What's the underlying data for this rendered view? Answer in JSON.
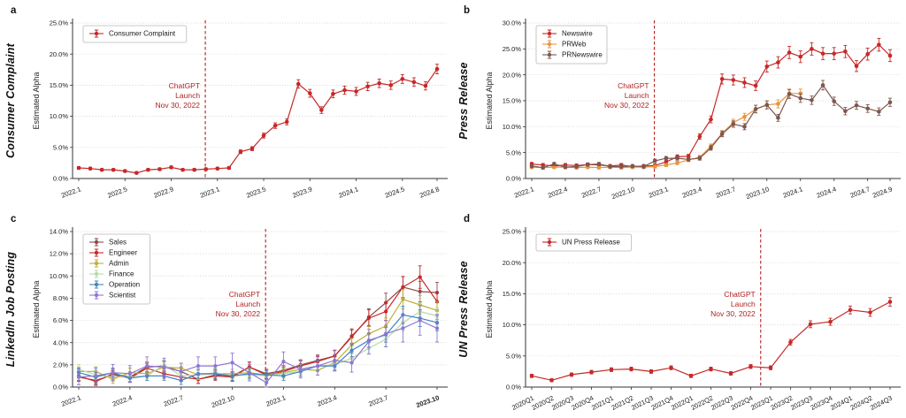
{
  "figure": {
    "panels": [
      {
        "letter": "a",
        "side_label": "Consumer Complaint"
      },
      {
        "letter": "b",
        "side_label": "Press Release"
      },
      {
        "letter": "c",
        "side_label": "LinkedIn Job Posting"
      },
      {
        "letter": "d",
        "side_label": "UN Press Release"
      }
    ]
  },
  "chart_data": [
    {
      "type": "line",
      "panel": "a",
      "title": "Consumer Complaint",
      "ylabel": "Estimated Alpha",
      "ylim": [
        0,
        25
      ],
      "ytick_step": 5,
      "grid": true,
      "legend_position": "upper-left",
      "xtick_angle": -20,
      "marker_r": 2.3,
      "err_base": 0.15,
      "err_rate": 0.035,
      "categories": [
        "2022.1",
        "2022.2",
        "2022.3",
        "2022.4",
        "2022.5",
        "2022.6",
        "2022.7",
        "2022.8",
        "2022.9",
        "2022.10",
        "2022.11",
        "2022.12",
        "2023.1",
        "2023.2",
        "2023.3",
        "2023.4",
        "2023.5",
        "2023.6",
        "2023.7",
        "2023.8",
        "2023.9",
        "2023.10",
        "2023.11",
        "2023.12",
        "2024.1",
        "2024.2",
        "2024.3",
        "2024.4",
        "2024.5",
        "2024.6",
        "2024.7",
        "2024.8"
      ],
      "xtick_labels": [
        "2022.1",
        "2022.5",
        "2022.9",
        "2023.1",
        "2023.5",
        "2023.9",
        "2024.1",
        "2024.5",
        "2024.8"
      ],
      "xtick_indices": [
        0,
        4,
        8,
        12,
        16,
        20,
        24,
        28,
        31
      ],
      "series": [
        {
          "name": "Consumer Complaint",
          "color": "#c62828",
          "values": [
            1.7,
            1.6,
            1.4,
            1.4,
            1.2,
            0.9,
            1.4,
            1.5,
            1.8,
            1.4,
            1.4,
            1.5,
            1.6,
            1.7,
            4.3,
            4.8,
            6.9,
            8.5,
            9.1,
            15.2,
            13.7,
            11.0,
            13.6,
            14.2,
            14.0,
            14.8,
            15.3,
            15.0,
            16.0,
            15.5,
            14.9,
            17.6
          ]
        }
      ],
      "vline": {
        "x_index": 10.95,
        "color": "#b22222",
        "label_lines": [
          "ChatGPT",
          "Launch",
          "Nov 30, 2022"
        ]
      }
    },
    {
      "type": "line",
      "panel": "b",
      "title": "Press Release",
      "ylabel": "Estimated Alpha",
      "ylim": [
        0,
        30
      ],
      "ytick_step": 5,
      "grid": true,
      "legend_position": "upper-left",
      "xtick_angle": -20,
      "marker_r": 2.3,
      "err_base": 0.2,
      "err_rate": 0.04,
      "categories": [
        "2022.1",
        "2022.2",
        "2022.3",
        "2022.4",
        "2022.5",
        "2022.6",
        "2022.7",
        "2022.8",
        "2022.9",
        "2022.10",
        "2022.11",
        "2022.12",
        "2023.1",
        "2023.2",
        "2023.3",
        "2023.4",
        "2023.5",
        "2023.6",
        "2023.7",
        "2023.8",
        "2023.9",
        "2023.10",
        "2023.11",
        "2023.12",
        "2024.1",
        "2024.2",
        "2024.3",
        "2024.4",
        "2024.5",
        "2024.6",
        "2024.7",
        "2024.8",
        "2024.9"
      ],
      "xtick_labels": [
        "2022.1",
        "2022.4",
        "2022.7",
        "2022.10",
        "2023.1",
        "2023.4",
        "2023.7",
        "2023.10",
        "2024.1",
        "2024.4",
        "2024.7",
        "2024.9"
      ],
      "xtick_indices": [
        0,
        3,
        6,
        9,
        12,
        15,
        18,
        21,
        24,
        27,
        30,
        32
      ],
      "series": [
        {
          "name": "Newswire",
          "color": "#c62828",
          "values": [
            2.8,
            2.6,
            2.4,
            2.6,
            2.5,
            2.7,
            2.6,
            2.4,
            2.6,
            2.3,
            2.4,
            2.5,
            3.2,
            4.2,
            4.3,
            8.1,
            11.4,
            19.2,
            19.0,
            18.5,
            17.9,
            21.6,
            22.4,
            24.3,
            23.5,
            25.0,
            24.1,
            24.1,
            24.5,
            21.7,
            24.0,
            25.8,
            23.7
          ]
        },
        {
          "name": "PRWeb",
          "color": "#e8943c",
          "values": [
            2.2,
            2.1,
            2.2,
            2.2,
            2.1,
            2.2,
            2.1,
            2.2,
            2.1,
            2.2,
            2.2,
            2.3,
            2.6,
            3.0,
            3.6,
            4.1,
            6.2,
            8.7,
            10.8,
            11.9,
            13.4,
            14.2,
            14.4,
            16.4,
            16.4,
            null,
            null,
            null,
            null,
            null,
            null,
            null,
            null
          ]
        },
        {
          "name": "PRNewswire",
          "color": "#7d564e",
          "values": [
            2.4,
            2.1,
            2.8,
            2.2,
            2.3,
            2.7,
            2.8,
            2.3,
            2.3,
            2.4,
            2.3,
            3.4,
            3.9,
            3.9,
            3.7,
            3.9,
            5.9,
            8.6,
            10.5,
            10.0,
            13.4,
            14.2,
            11.7,
            16.3,
            15.5,
            15.1,
            18.0,
            14.9,
            13.0,
            14.1,
            13.5,
            12.9,
            14.7
          ]
        }
      ],
      "vline": {
        "x_index": 10.95,
        "color": "#b22222",
        "label_lines": [
          "ChatGPT",
          "Launch",
          "Nov 30, 2022"
        ]
      }
    },
    {
      "type": "line",
      "panel": "c",
      "title": "LinkedIn Job Posting",
      "ylabel": "Estimated Alpha",
      "ylim": [
        0,
        14
      ],
      "ytick_step": 2,
      "grid": true,
      "legend_position": "upper-left",
      "xtick_angle": -20,
      "marker_r": 2.1,
      "err_base": 0.32,
      "err_rate": 0.07,
      "bold_xtick_labels": [
        "2023.10"
      ],
      "categories": [
        "2022.1",
        "2022.2",
        "2022.3",
        "2022.4",
        "2022.5",
        "2022.6",
        "2022.7",
        "2022.8",
        "2022.9",
        "2022.10",
        "2022.11",
        "2022.12",
        "2023.1",
        "2023.2",
        "2023.3",
        "2023.4",
        "2023.5",
        "2023.6",
        "2023.7",
        "2023.8",
        "2023.9",
        "2023.10"
      ],
      "xtick_labels": [
        "2022.1",
        "2022.4",
        "2022.7",
        "2022.10",
        "2023.1",
        "2023.4",
        "2023.7",
        "2023.10"
      ],
      "xtick_indices": [
        0,
        3,
        6,
        9,
        12,
        15,
        18,
        21
      ],
      "series": [
        {
          "name": "Sales",
          "color": "#8d4a45",
          "values": [
            1.0,
            0.5,
            1.2,
            0.9,
            1.8,
            1.9,
            1.4,
            0.7,
            1.1,
            1.0,
            1.8,
            1.2,
            1.5,
            2.0,
            2.4,
            2.8,
            4.5,
            6.3,
            7.6,
            9.0,
            8.6,
            8.5
          ]
        },
        {
          "name": "Engineer",
          "color": "#c62828",
          "values": [
            0.9,
            0.6,
            1.1,
            0.8,
            1.7,
            1.2,
            0.9,
            0.7,
            1.0,
            0.9,
            1.8,
            1.1,
            1.4,
            1.9,
            2.3,
            2.8,
            4.6,
            6.2,
            6.8,
            9.0,
            9.9,
            7.7
          ]
        },
        {
          "name": "Admin",
          "color": "#bcae3c",
          "values": [
            1.4,
            1.4,
            0.7,
            1.3,
            1.2,
            1.8,
            1.7,
            1.1,
            1.2,
            1.2,
            1.3,
            1.1,
            1.3,
            1.6,
            1.5,
            2.2,
            3.8,
            4.8,
            5.5,
            7.9,
            7.4,
            6.9
          ]
        },
        {
          "name": "Finance",
          "color": "#b5dba8",
          "values": [
            1.6,
            1.1,
            0.9,
            0.9,
            1.0,
            2.0,
            1.0,
            1.1,
            1.3,
            1.0,
            1.1,
            1.0,
            1.2,
            1.4,
            1.9,
            2.0,
            2.6,
            3.5,
            4.3,
            5.8,
            6.8,
            6.4
          ]
        },
        {
          "name": "Operation",
          "color": "#4384c4",
          "values": [
            1.3,
            0.9,
            1.3,
            0.8,
            1.0,
            1.0,
            0.6,
            1.2,
            1.2,
            1.0,
            1.2,
            1.1,
            1.0,
            1.4,
            1.9,
            1.9,
            3.3,
            4.2,
            4.7,
            6.5,
            6.2,
            5.8
          ]
        },
        {
          "name": "Scientist",
          "color": "#8d77d4",
          "err_mult": 1.8,
          "values": [
            0.9,
            1.0,
            1.3,
            1.2,
            1.9,
            1.8,
            1.4,
            1.9,
            1.9,
            2.2,
            1.3,
            0.4,
            2.3,
            1.6,
            1.9,
            2.4,
            2.2,
            4.1,
            4.8,
            5.3,
            6.0,
            5.3
          ]
        }
      ],
      "vline": {
        "x_index": 10.95,
        "color": "#b22222",
        "label_lines": [
          "ChatGPT",
          "Launch",
          "Nov 30, 2022"
        ]
      }
    },
    {
      "type": "line",
      "panel": "d",
      "title": "UN Press Release",
      "ylabel": "Estimated Alpha",
      "ylim": [
        0,
        25
      ],
      "ytick_step": 5,
      "grid": true,
      "legend_position": "upper-left",
      "xtick_angle": -27,
      "marker_r": 2.3,
      "err_base": 0.2,
      "err_rate": 0.035,
      "categories": [
        "2020Q1",
        "2020Q2",
        "2020Q3",
        "2020Q4",
        "2021Q1",
        "2021Q2",
        "2021Q3",
        "2021Q4",
        "2022Q1",
        "2022Q2",
        "2022Q3",
        "2022Q4",
        "2023Q1",
        "2023Q2",
        "2023Q3",
        "2023Q4",
        "2024Q1",
        "2024Q2",
        "2024Q3"
      ],
      "xtick_labels": [
        "2020Q1",
        "2020Q2",
        "2020Q3",
        "2020Q4",
        "2021Q1",
        "2021Q2",
        "2021Q3",
        "2021Q4",
        "2022Q1",
        "2022Q2",
        "2022Q3",
        "2022Q4",
        "2023Q1",
        "2023Q2",
        "2023Q3",
        "2023Q4",
        "2024Q1",
        "2024Q2",
        "2024Q3"
      ],
      "xtick_indices": [
        0,
        1,
        2,
        3,
        4,
        5,
        6,
        7,
        8,
        9,
        10,
        11,
        12,
        13,
        14,
        15,
        16,
        17,
        18
      ],
      "series": [
        {
          "name": "UN Press Release",
          "color": "#c62828",
          "values": [
            1.8,
            1.1,
            2.0,
            2.4,
            2.8,
            2.9,
            2.5,
            3.1,
            1.8,
            2.9,
            2.2,
            3.3,
            3.1,
            7.2,
            10.1,
            10.5,
            12.4,
            12.0,
            13.7
          ]
        }
      ],
      "vline": {
        "x_index": 11.5,
        "color": "#b22222",
        "label_lines": [
          "ChatGPT",
          "Launch",
          "Nov 30, 2022"
        ]
      }
    }
  ]
}
